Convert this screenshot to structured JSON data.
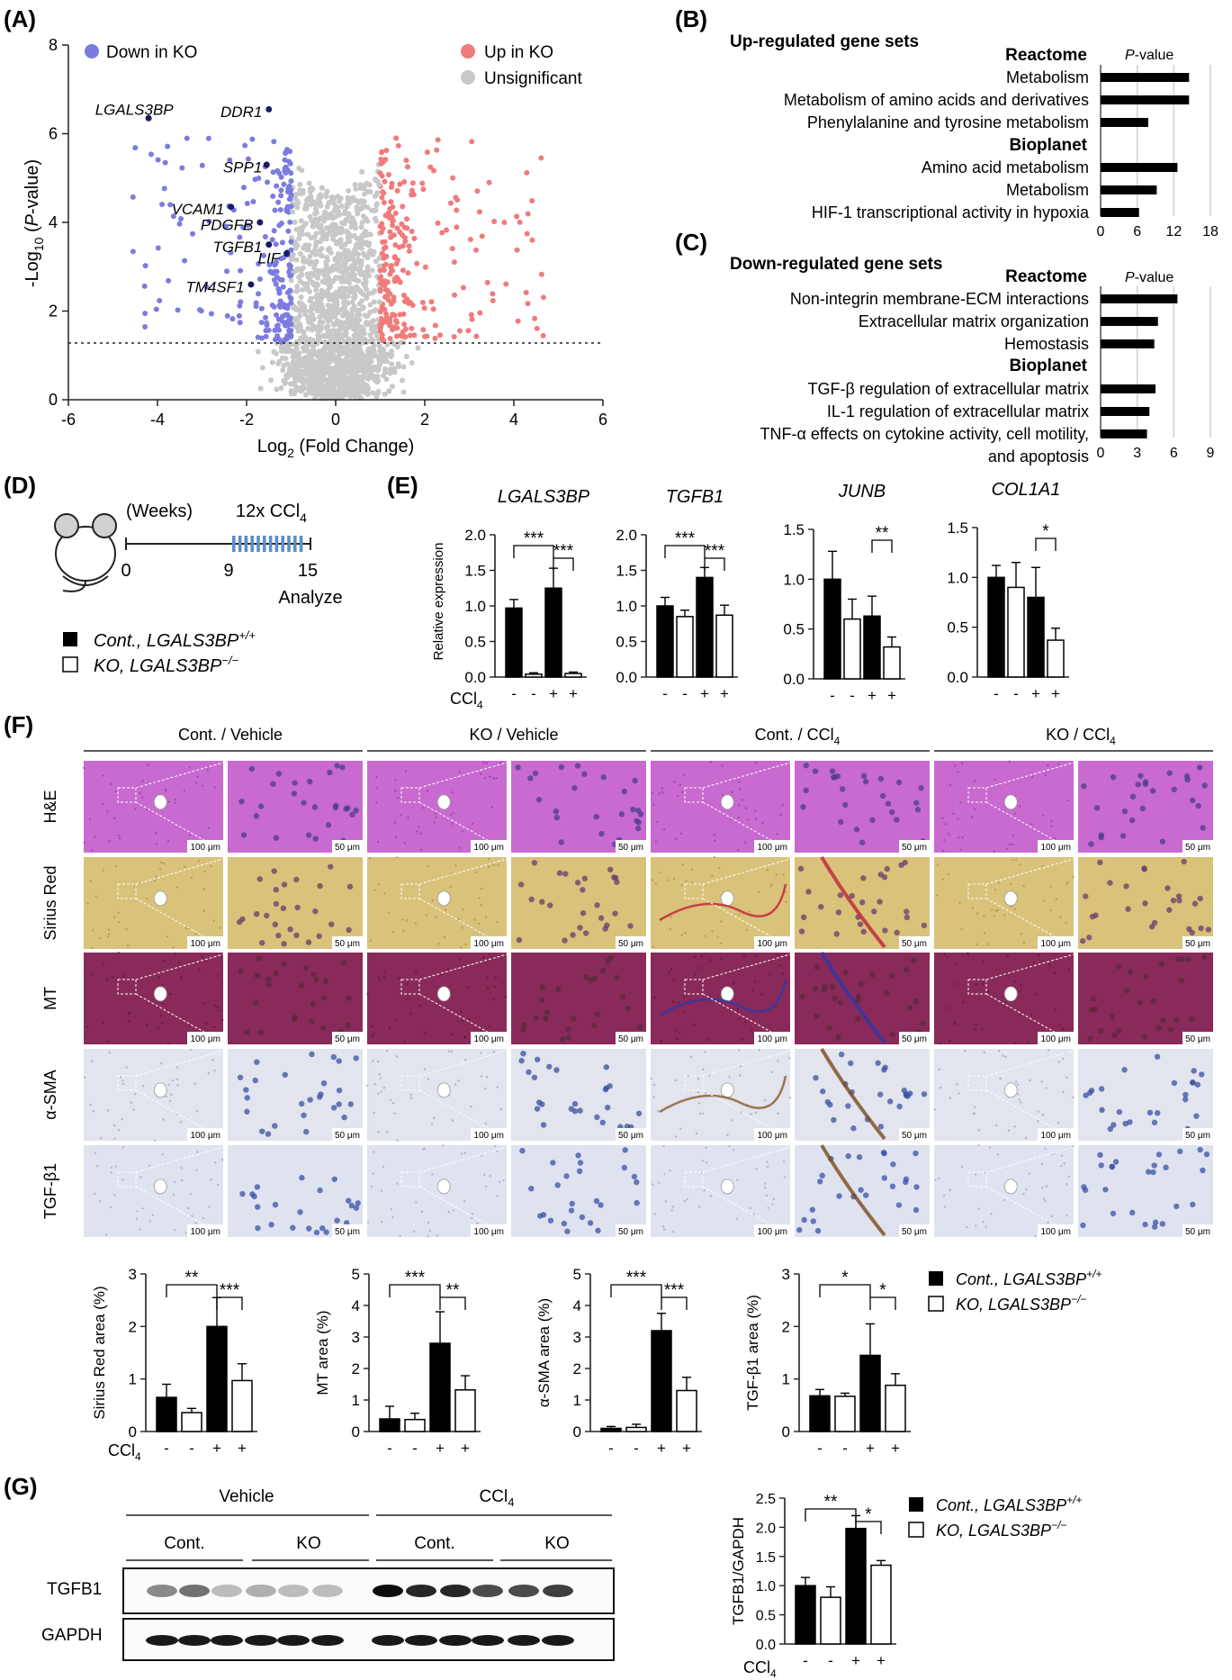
{
  "figure": {
    "panel_letters": [
      "(A)",
      "(B)",
      "(C)",
      "(D)",
      "(E)",
      "(F)",
      "(G)"
    ]
  },
  "panel_a": {
    "legend": {
      "down": "Down in KO",
      "up": "Up in KO",
      "unsig": "Unsignificant"
    },
    "xlabel_main": "Log",
    "xlabel_sub": "2",
    "xlabel_rest": " (Fold Change)",
    "ylabel_a": "-Log",
    "ylabel_sub": "10",
    "ylabel_b": " (",
    "ylabel_italic": "P",
    "ylabel_c": "-value)",
    "genes": [
      "LGALS3BP",
      "DDR1",
      "SPP1",
      "VCAM1",
      "PDGFB",
      "TGFB1",
      "LIF",
      "TM4SF1"
    ],
    "colors": {
      "down": "#7b7be0",
      "up": "#f07b7b",
      "unsig": "#c8c8c8",
      "labeled": "#1a1a66"
    }
  },
  "panel_b": {
    "title": "Up-regulated gene sets",
    "db1": "Reactome",
    "db2": "Bioplanet",
    "pval_italic": "P",
    "pval_rest": "-value",
    "terms": [
      "Metabolism",
      "Metabolism of amino acids and derivatives",
      "Phenylalanine and tyrosine metabolism",
      "Amino acid metabolism",
      "Metabolism",
      "HIF-1 transcriptional activity in hypoxia"
    ]
  },
  "panel_c": {
    "title": "Down-regulated gene sets",
    "db1": "Reactome",
    "db2": "Bioplanet",
    "pval_italic": "P",
    "pval_rest": "-value",
    "terms": [
      "Non-integrin membrane-ECM interactions",
      "Extracellular matrix organization",
      "Hemostasis",
      "TGF-β regulation of extracellular matrix",
      "IL-1 regulation of extracellular matrix",
      "TNF-α effects on cytokine activity, cell motility,",
      "and apoptosis"
    ]
  },
  "panel_d": {
    "weeks": "(Weeks)",
    "treatment": "12x CCl",
    "treatment_sub": "4",
    "t0": "0",
    "t9": "9",
    "t15": "15",
    "analyze": "Analyze",
    "legend_cont": "Cont., LGALS3BP",
    "legend_cont_sup": "+/+",
    "legend_ko": "KO, LGALS3BP",
    "legend_ko_sup": "−/−"
  },
  "panel_e": {
    "ylabel": "Relative expression",
    "ccl4": "CCl",
    "ccl4_sub": "4",
    "signs": [
      "-",
      "-",
      "+",
      "+"
    ]
  },
  "panel_f": {
    "groups": [
      "Cont. / Vehicle",
      "KO / Vehicle",
      "Cont. / CCl",
      "KO / CCl"
    ],
    "group_sub": [
      "",
      "",
      "4",
      "4"
    ],
    "stains": [
      "H&E",
      "Sirius Red",
      "MT",
      "α-SMA",
      "TGF-β1"
    ],
    "scale_low": "100 μm",
    "scale_high": "50 μm",
    "stain_colors": [
      "#c86ad0",
      "#d9c27a",
      "#8a2a5a",
      "#e2e4ee",
      "#dfe3f0"
    ],
    "legend_cont": "Cont., LGALS3BP",
    "legend_cont_sup": "+/+",
    "legend_ko": "KO, LGALS3BP",
    "legend_ko_sup": "−/−"
  },
  "panel_g": {
    "vehicle": "Vehicle",
    "ccl4": "CCl",
    "ccl4_sub": "4",
    "cont": "Cont.",
    "ko": "KO",
    "rows": [
      "TGFB1",
      "GAPDH"
    ],
    "ylabel": "TGFB1/GAPDH",
    "legend_cont": "Cont., LGALS3BP",
    "legend_cont_sup": "+/+",
    "legend_ko": "KO, LGALS3BP",
    "legend_ko_sup": "−/−"
  },
  "chart_data": [
    {
      "id": "volcano",
      "type": "scatter",
      "xlim": [
        -6,
        6
      ],
      "ylim": [
        0,
        8
      ],
      "xticks": [
        -6,
        -4,
        -2,
        0,
        2,
        4,
        6
      ],
      "yticks": [
        0,
        2,
        4,
        6,
        8
      ],
      "threshold_y": 1.3,
      "labeled_points": [
        {
          "name": "LGALS3BP",
          "x": -4.2,
          "y": 6.35
        },
        {
          "name": "DDR1",
          "x": -1.5,
          "y": 6.55
        },
        {
          "name": "SPP1",
          "x": -1.55,
          "y": 5.3
        },
        {
          "name": "VCAM1",
          "x": -2.35,
          "y": 4.35
        },
        {
          "name": "PDGFB",
          "x": -1.7,
          "y": 4.0
        },
        {
          "name": "TGFB1",
          "x": -1.5,
          "y": 3.5
        },
        {
          "name": "LIF",
          "x": -1.1,
          "y": 3.3
        },
        {
          "name": "TM4SF1",
          "x": -1.9,
          "y": 2.6
        }
      ]
    },
    {
      "id": "up_gene_sets",
      "type": "bar",
      "categories": [
        "Metabolism",
        "Metabolism of amino acids and derivatives",
        "Phenylalanine and tyrosine metabolism",
        "Amino acid metabolism",
        "Metabolism",
        "HIF-1 transcriptional activity in hypoxia"
      ],
      "values": [
        14.5,
        14.5,
        7.8,
        12.6,
        9.2,
        6.3
      ],
      "xlim": [
        0,
        18
      ],
      "xticks": [
        0,
        6,
        12,
        18
      ]
    },
    {
      "id": "down_gene_sets",
      "type": "bar",
      "categories": [
        "Non-integrin membrane-ECM interactions",
        "Extracellular matrix organization",
        "Hemostasis",
        "TGF-β regulation of extracellular matrix",
        "IL-1 regulation of extracellular matrix",
        "TNF-α effects on cytokine activity, cell motility, and apoptosis"
      ],
      "values": [
        6.3,
        4.7,
        4.4,
        4.5,
        4.0,
        3.8
      ],
      "xlim": [
        0,
        9
      ],
      "xticks": [
        0,
        3,
        6,
        9
      ]
    },
    {
      "id": "qpcr_LGALS3BP",
      "type": "bar",
      "title": "LGALS3BP",
      "values": [
        0.97,
        0.04,
        1.25,
        0.05
      ],
      "errors": [
        0.12,
        0.02,
        0.28,
        0.02
      ],
      "ylim": [
        0,
        2.0
      ],
      "yticks": [
        0.0,
        0.5,
        1.0,
        1.5,
        2.0
      ],
      "sig": [
        {
          "from": 0,
          "to": 2,
          "text": "***"
        },
        {
          "from": 2,
          "to": 3,
          "text": "***"
        }
      ]
    },
    {
      "id": "qpcr_TGFB1",
      "type": "bar",
      "title": "TGFB1",
      "values": [
        1.0,
        0.85,
        1.4,
        0.87
      ],
      "errors": [
        0.12,
        0.09,
        0.14,
        0.14
      ],
      "ylim": [
        0,
        2.0
      ],
      "yticks": [
        0.0,
        0.5,
        1.0,
        1.5,
        2.0
      ],
      "sig": [
        {
          "from": 0,
          "to": 2,
          "text": "***"
        },
        {
          "from": 2,
          "to": 3,
          "text": "***"
        }
      ]
    },
    {
      "id": "qpcr_JUNB",
      "type": "bar",
      "title": "JUNB",
      "values": [
        1.0,
        0.6,
        0.63,
        0.32
      ],
      "errors": [
        0.28,
        0.2,
        0.2,
        0.1
      ],
      "ylim": [
        0,
        1.5
      ],
      "yticks": [
        0.0,
        0.5,
        1.0,
        1.5
      ],
      "sig": [
        {
          "from": 2,
          "to": 3,
          "text": "**"
        }
      ]
    },
    {
      "id": "qpcr_COL1A1",
      "type": "bar",
      "title": "COL1A1",
      "values": [
        1.0,
        0.9,
        0.8,
        0.37
      ],
      "errors": [
        0.12,
        0.25,
        0.3,
        0.12
      ],
      "ylim": [
        0,
        1.5
      ],
      "yticks": [
        0.0,
        0.5,
        1.0,
        1.5
      ],
      "sig": [
        {
          "from": 2,
          "to": 3,
          "text": "*"
        }
      ]
    },
    {
      "id": "area_sirius",
      "type": "bar",
      "ylabel": "Sirius Red area (%)",
      "values": [
        0.65,
        0.36,
        2.0,
        0.97
      ],
      "errors": [
        0.25,
        0.08,
        0.55,
        0.32
      ],
      "ylim": [
        0,
        3
      ],
      "yticks": [
        0,
        1,
        2,
        3
      ],
      "sig": [
        {
          "from": 0,
          "to": 2,
          "text": "**"
        },
        {
          "from": 2,
          "to": 3,
          "text": "***"
        }
      ]
    },
    {
      "id": "area_mt",
      "type": "bar",
      "ylabel": "MT area (%)",
      "values": [
        0.4,
        0.38,
        2.8,
        1.32
      ],
      "errors": [
        0.4,
        0.2,
        1.0,
        0.45
      ],
      "ylim": [
        0,
        5
      ],
      "yticks": [
        0,
        1,
        2,
        3,
        4,
        5
      ],
      "sig": [
        {
          "from": 0,
          "to": 2,
          "text": "***"
        },
        {
          "from": 2,
          "to": 3,
          "text": "**"
        }
      ]
    },
    {
      "id": "area_asma",
      "type": "bar",
      "ylabel": "α-SMA area (%)",
      "values": [
        0.1,
        0.13,
        3.2,
        1.3
      ],
      "errors": [
        0.06,
        0.1,
        0.55,
        0.42
      ],
      "ylim": [
        0,
        5
      ],
      "yticks": [
        0,
        1,
        2,
        3,
        4,
        5
      ],
      "sig": [
        {
          "from": 0,
          "to": 2,
          "text": "***"
        },
        {
          "from": 2,
          "to": 3,
          "text": "***"
        }
      ]
    },
    {
      "id": "area_tgfb1",
      "type": "bar",
      "ylabel": "TGF-β1 area (%)",
      "values": [
        0.68,
        0.67,
        1.45,
        0.88
      ],
      "errors": [
        0.12,
        0.06,
        0.6,
        0.22
      ],
      "ylim": [
        0,
        3
      ],
      "yticks": [
        0,
        1,
        2,
        3
      ],
      "sig": [
        {
          "from": 0,
          "to": 2,
          "text": "*"
        },
        {
          "from": 2,
          "to": 3,
          "text": "*"
        }
      ]
    },
    {
      "id": "wb_quant",
      "type": "bar",
      "ylabel": "TGFB1/GAPDH",
      "values": [
        1.0,
        0.8,
        1.98,
        1.35
      ],
      "errors": [
        0.14,
        0.18,
        0.22,
        0.08
      ],
      "ylim": [
        0,
        2.5
      ],
      "yticks": [
        0.0,
        0.5,
        1.0,
        1.5,
        2.0,
        2.5
      ],
      "sig": [
        {
          "from": 0,
          "to": 2,
          "text": "**"
        },
        {
          "from": 2,
          "to": 3,
          "text": "*"
        }
      ]
    }
  ]
}
